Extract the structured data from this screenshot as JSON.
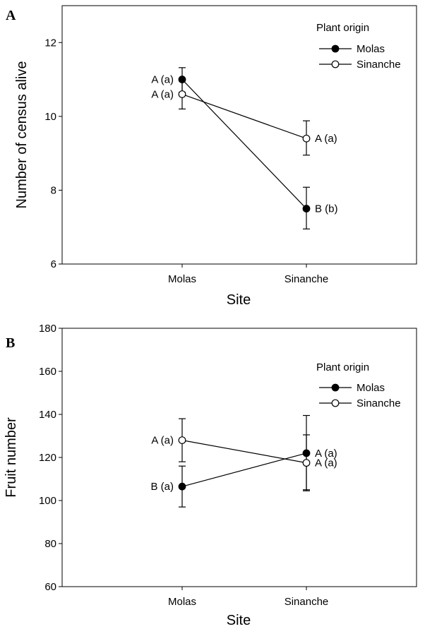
{
  "chart_data": [
    {
      "type": "line",
      "panel_label": "A",
      "categories": [
        "Molas",
        "Sinanche"
      ],
      "xlabel": "Site",
      "ylabel": "Number of census alive",
      "ylim": [
        6,
        13
      ],
      "yticks": [
        6,
        8,
        10,
        12
      ],
      "grid": false,
      "legend": {
        "title": "Plant origin",
        "position": "top-right"
      },
      "series": [
        {
          "name": "Molas",
          "marker": "filled-circle",
          "color": "#000000",
          "values": [
            11.0,
            7.5
          ],
          "error_low": [
            10.65,
            6.95
          ],
          "error_high": [
            11.32,
            8.08
          ],
          "annotations": [
            "A (a)",
            "B (b)"
          ]
        },
        {
          "name": "Sinanche",
          "marker": "open-circle",
          "color": "#000000",
          "values": [
            10.6,
            9.4
          ],
          "error_low": [
            10.2,
            8.95
          ],
          "error_high": [
            11.0,
            9.88
          ],
          "annotations": [
            "A (a)",
            "A (a)"
          ]
        }
      ]
    },
    {
      "type": "line",
      "panel_label": "B",
      "categories": [
        "Molas",
        "Sinanche"
      ],
      "xlabel": "Site",
      "ylabel": "Fruit number",
      "ylim": [
        60,
        180
      ],
      "yticks": [
        60,
        80,
        100,
        120,
        140,
        160,
        180
      ],
      "grid": false,
      "legend": {
        "title": "Plant origin",
        "position": "top-right"
      },
      "series": [
        {
          "name": "Molas",
          "marker": "filled-circle",
          "color": "#000000",
          "values": [
            106.5,
            122.0
          ],
          "error_low": [
            97.0,
            105.0
          ],
          "error_high": [
            116.0,
            139.5
          ],
          "annotations": [
            "B (a)",
            "A (a)"
          ]
        },
        {
          "name": "Sinanche",
          "marker": "open-circle",
          "color": "#000000",
          "values": [
            128.0,
            117.5
          ],
          "error_low": [
            118.0,
            104.5
          ],
          "error_high": [
            138.0,
            130.5
          ],
          "annotations": [
            "A (a)",
            "A (a)"
          ]
        }
      ]
    }
  ]
}
